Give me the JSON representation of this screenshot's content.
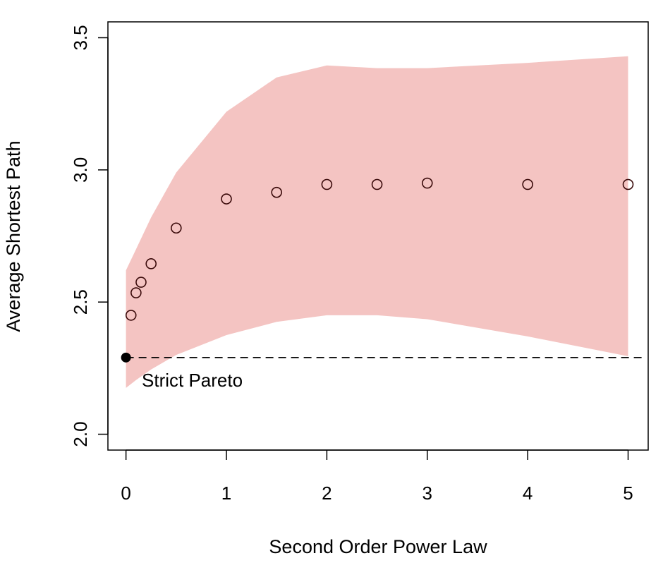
{
  "chart_data": {
    "type": "scatter",
    "title": "",
    "xlabel": "Second Order Power Law",
    "ylabel": "Average Shortest Path",
    "xlim": [
      -0.18,
      5.2
    ],
    "ylim": [
      1.94,
      3.56
    ],
    "grid": false,
    "legend": "none",
    "x_ticks": [
      0,
      1,
      2,
      3,
      4,
      5
    ],
    "y_ticks": [
      2.0,
      2.5,
      3.0,
      3.5
    ],
    "x_tick_labels": [
      "0",
      "1",
      "2",
      "3",
      "4",
      "5"
    ],
    "y_tick_labels": [
      "2.0",
      "2.5",
      "3.0",
      "3.5"
    ],
    "series": [
      {
        "kind": "points",
        "x": [
          0.05,
          0.1,
          0.15,
          0.25,
          0.5,
          1,
          1.5,
          2,
          2.5,
          3,
          4,
          5
        ],
        "y": [
          2.45,
          2.535,
          2.575,
          2.645,
          2.78,
          2.89,
          2.915,
          2.945,
          2.945,
          2.95,
          2.945,
          2.945
        ],
        "marker": "open-circle",
        "color": "#3a0a0a"
      }
    ],
    "band": {
      "x": [
        0,
        0.1,
        0.25,
        0.5,
        1,
        1.5,
        2,
        2.5,
        3,
        4,
        5
      ],
      "upper": [
        2.62,
        2.7,
        2.82,
        2.99,
        3.22,
        3.35,
        3.395,
        3.385,
        3.385,
        3.405,
        3.43
      ],
      "lower": [
        2.175,
        2.205,
        2.245,
        2.3,
        2.375,
        2.425,
        2.45,
        2.45,
        2.435,
        2.37,
        2.295
      ],
      "color": "#f4c4c2"
    },
    "reference": {
      "y": 2.29,
      "style": "dashed",
      "color": "#000000",
      "point": {
        "x": 0,
        "y": 2.29,
        "color": "#000000"
      },
      "label": "Strict Pareto"
    }
  }
}
